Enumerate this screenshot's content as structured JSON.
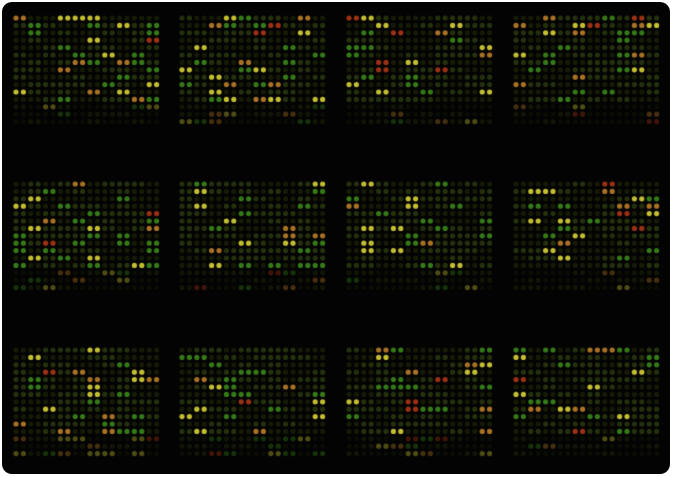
{
  "image": {
    "subject": "microarray",
    "background_color": "#030303",
    "block_grid": {
      "rows": 3,
      "cols": 4
    },
    "spots_per_block": {
      "rows": 15,
      "cols": 20
    },
    "spot_colors": {
      "dim": "#2c3a10",
      "green": "#3f8f1c",
      "yellow": "#e6e03a",
      "orange": "#c7862a",
      "red": "#b83a18"
    }
  }
}
